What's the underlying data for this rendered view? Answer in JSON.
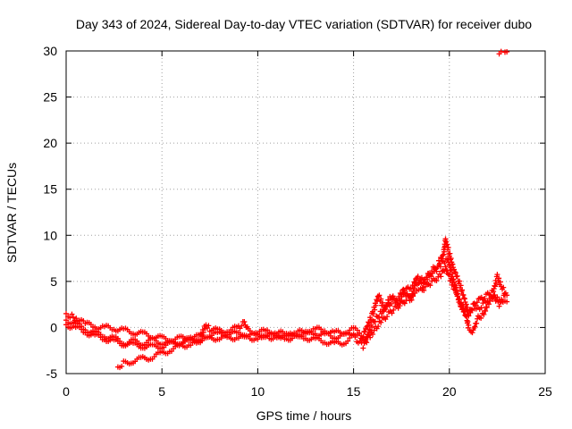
{
  "chart_data": {
    "type": "scatter",
    "title": "Day 343 of 2024, Sidereal Day-to-day VTEC variation (SDTVAR) for receiver dubo",
    "xlabel": "GPS time / hours",
    "ylabel": "SDTVAR / TECUs",
    "xlim": [
      0,
      25
    ],
    "ylim": [
      -5,
      30
    ],
    "xticks": [
      0,
      5,
      10,
      15,
      20,
      25
    ],
    "yticks": [
      -5,
      0,
      5,
      10,
      15,
      20,
      25,
      30
    ],
    "grid": true,
    "marker": "+",
    "series": [
      {
        "name": "dubo",
        "color": "#ff0000",
        "tracks": [
          [
            [
              0.0,
              1.5
            ],
            [
              0.3,
              1.2
            ],
            [
              0.6,
              0.8
            ],
            [
              1.0,
              0.4
            ],
            [
              1.5,
              0.1
            ],
            [
              2.0,
              0.0
            ],
            [
              2.5,
              -0.1
            ],
            [
              3.0,
              -0.3
            ],
            [
              3.5,
              -0.5
            ],
            [
              4.0,
              -0.7
            ],
            [
              4.5,
              -0.9
            ],
            [
              5.0,
              -1.2
            ],
            [
              5.5,
              -1.3
            ],
            [
              6.0,
              -1.2
            ],
            [
              6.5,
              -1.1
            ],
            [
              7.0,
              -1.0
            ],
            [
              7.5,
              -0.8
            ],
            [
              8.0,
              -0.7
            ],
            [
              8.5,
              -0.6
            ],
            [
              9.0,
              -0.7
            ],
            [
              9.5,
              -0.8
            ],
            [
              10.0,
              -0.9
            ],
            [
              10.5,
              -0.8
            ],
            [
              11.0,
              -0.9
            ],
            [
              11.5,
              -0.9
            ],
            [
              12.0,
              -0.8
            ],
            [
              12.5,
              -0.7
            ],
            [
              13.0,
              -0.6
            ],
            [
              13.5,
              -0.8
            ],
            [
              14.0,
              -1.0
            ],
            [
              14.5,
              -0.9
            ],
            [
              15.0,
              -0.5
            ],
            [
              15.3,
              -0.8
            ],
            [
              15.6,
              -1.5
            ],
            [
              16.0,
              0.5
            ],
            [
              16.4,
              1.5
            ],
            [
              16.8,
              2.5
            ],
            [
              17.2,
              3.0
            ],
            [
              17.6,
              3.8
            ],
            [
              18.0,
              4.5
            ],
            [
              18.4,
              5.0
            ],
            [
              18.8,
              5.5
            ],
            [
              19.2,
              6.0
            ],
            [
              19.6,
              7.0
            ],
            [
              19.9,
              7.5
            ],
            [
              20.1,
              6.0
            ],
            [
              20.3,
              4.5
            ],
            [
              20.5,
              3.0
            ],
            [
              20.7,
              2.0
            ],
            [
              20.9,
              1.0
            ],
            [
              21.0,
              0.0
            ],
            [
              21.2,
              -0.5
            ],
            [
              21.5,
              1.0
            ],
            [
              21.8,
              1.5
            ],
            [
              22.0,
              2.5
            ],
            [
              22.3,
              3.5
            ],
            [
              22.6,
              2.5
            ],
            [
              22.9,
              3.5
            ]
          ],
          [
            [
              0.0,
              0.8
            ],
            [
              0.5,
              0.4
            ],
            [
              1.0,
              -0.2
            ],
            [
              1.5,
              -0.6
            ],
            [
              2.0,
              -0.9
            ],
            [
              2.5,
              -1.2
            ],
            [
              3.0,
              -1.6
            ],
            [
              3.5,
              -1.9
            ],
            [
              4.0,
              -2.0
            ],
            [
              4.5,
              -2.1
            ],
            [
              5.0,
              -2.0
            ],
            [
              5.5,
              -1.8
            ],
            [
              6.0,
              -1.6
            ],
            [
              6.5,
              -1.5
            ],
            [
              7.0,
              -1.4
            ],
            [
              7.5,
              -1.2
            ],
            [
              8.0,
              -1.1
            ],
            [
              8.5,
              -1.2
            ],
            [
              9.0,
              -1.0
            ],
            [
              9.5,
              -1.1
            ],
            [
              10.0,
              -1.2
            ],
            [
              10.5,
              -1.0
            ],
            [
              11.0,
              -1.1
            ],
            [
              11.5,
              -1.2
            ],
            [
              12.0,
              -1.0
            ],
            [
              12.5,
              -1.1
            ],
            [
              13.0,
              -1.3
            ],
            [
              13.5,
              -1.5
            ],
            [
              14.0,
              -1.8
            ],
            [
              14.5,
              -1.6
            ],
            [
              15.0,
              -1.0
            ],
            [
              15.5,
              -2.0
            ],
            [
              15.8,
              -1.0
            ],
            [
              16.0,
              -0.5
            ],
            [
              16.5,
              0.8
            ],
            [
              17.0,
              1.8
            ],
            [
              17.5,
              2.6
            ],
            [
              18.0,
              3.4
            ],
            [
              18.5,
              4.0
            ],
            [
              19.0,
              4.8
            ],
            [
              19.5,
              5.6
            ],
            [
              19.8,
              6.5
            ],
            [
              20.0,
              5.5
            ],
            [
              20.3,
              4.0
            ],
            [
              20.6,
              2.5
            ],
            [
              21.0,
              1.5
            ],
            [
              21.5,
              2.0
            ],
            [
              22.0,
              3.0
            ],
            [
              22.5,
              3.2
            ],
            [
              23.0,
              2.8
            ]
          ],
          [
            [
              0.0,
              0.3
            ],
            [
              0.5,
              0.0
            ],
            [
              1.0,
              -0.5
            ],
            [
              1.5,
              -0.9
            ],
            [
              2.0,
              -1.2
            ],
            [
              2.5,
              -1.5
            ],
            [
              3.0,
              -1.8
            ],
            [
              3.5,
              -1.5
            ],
            [
              4.0,
              -1.7
            ],
            [
              4.5,
              -1.4
            ],
            [
              5.0,
              -1.6
            ],
            [
              5.5,
              -1.7
            ],
            [
              6.0,
              -1.5
            ],
            [
              6.5,
              -1.3
            ],
            [
              7.0,
              -1.1
            ],
            [
              7.3,
              0.3
            ],
            [
              7.5,
              -0.2
            ],
            [
              8.0,
              -0.4
            ],
            [
              8.5,
              -0.3
            ],
            [
              9.0,
              0.0
            ],
            [
              9.3,
              0.5
            ],
            [
              9.5,
              -0.3
            ],
            [
              10.0,
              -0.5
            ],
            [
              10.5,
              -0.4
            ],
            [
              11.0,
              -0.6
            ],
            [
              11.5,
              -0.7
            ],
            [
              12.0,
              -0.6
            ],
            [
              12.5,
              -0.4
            ],
            [
              13.0,
              -0.2
            ],
            [
              13.5,
              -0.3
            ],
            [
              14.0,
              -0.6
            ],
            [
              14.5,
              -0.5
            ],
            [
              15.0,
              -0.2
            ],
            [
              15.5,
              -0.8
            ],
            [
              16.0,
              1.5
            ],
            [
              16.3,
              3.5
            ],
            [
              16.6,
              2.0
            ],
            [
              17.0,
              3.5
            ],
            [
              17.3,
              2.5
            ],
            [
              17.6,
              4.0
            ],
            [
              18.0,
              3.0
            ],
            [
              18.3,
              5.5
            ],
            [
              18.6,
              4.5
            ],
            [
              19.0,
              6.0
            ],
            [
              19.4,
              6.8
            ],
            [
              19.7,
              8.0
            ],
            [
              19.8,
              9.5
            ],
            [
              20.0,
              8.0
            ],
            [
              20.2,
              6.5
            ],
            [
              20.5,
              5.0
            ],
            [
              20.8,
              3.0
            ],
            [
              21.0,
              1.5
            ],
            [
              21.3,
              2.5
            ],
            [
              21.6,
              3.0
            ],
            [
              22.0,
              3.5
            ],
            [
              22.3,
              4.0
            ],
            [
              22.5,
              5.5
            ],
            [
              22.7,
              4.5
            ],
            [
              23.0,
              3.5
            ]
          ],
          [
            [
              2.7,
              -4.2
            ],
            [
              3.0,
              -3.9
            ],
            [
              3.5,
              -3.6
            ],
            [
              4.0,
              -3.4
            ],
            [
              4.5,
              -3.2
            ],
            [
              5.0,
              -2.8
            ],
            [
              5.5,
              -2.4
            ],
            [
              6.0,
              -2.0
            ],
            [
              6.5,
              -1.8
            ],
            [
              7.0,
              -1.5
            ]
          ],
          [
            [
              22.6,
              29.6
            ],
            [
              22.8,
              29.8
            ],
            [
              23.0,
              29.9
            ]
          ]
        ]
      }
    ]
  }
}
